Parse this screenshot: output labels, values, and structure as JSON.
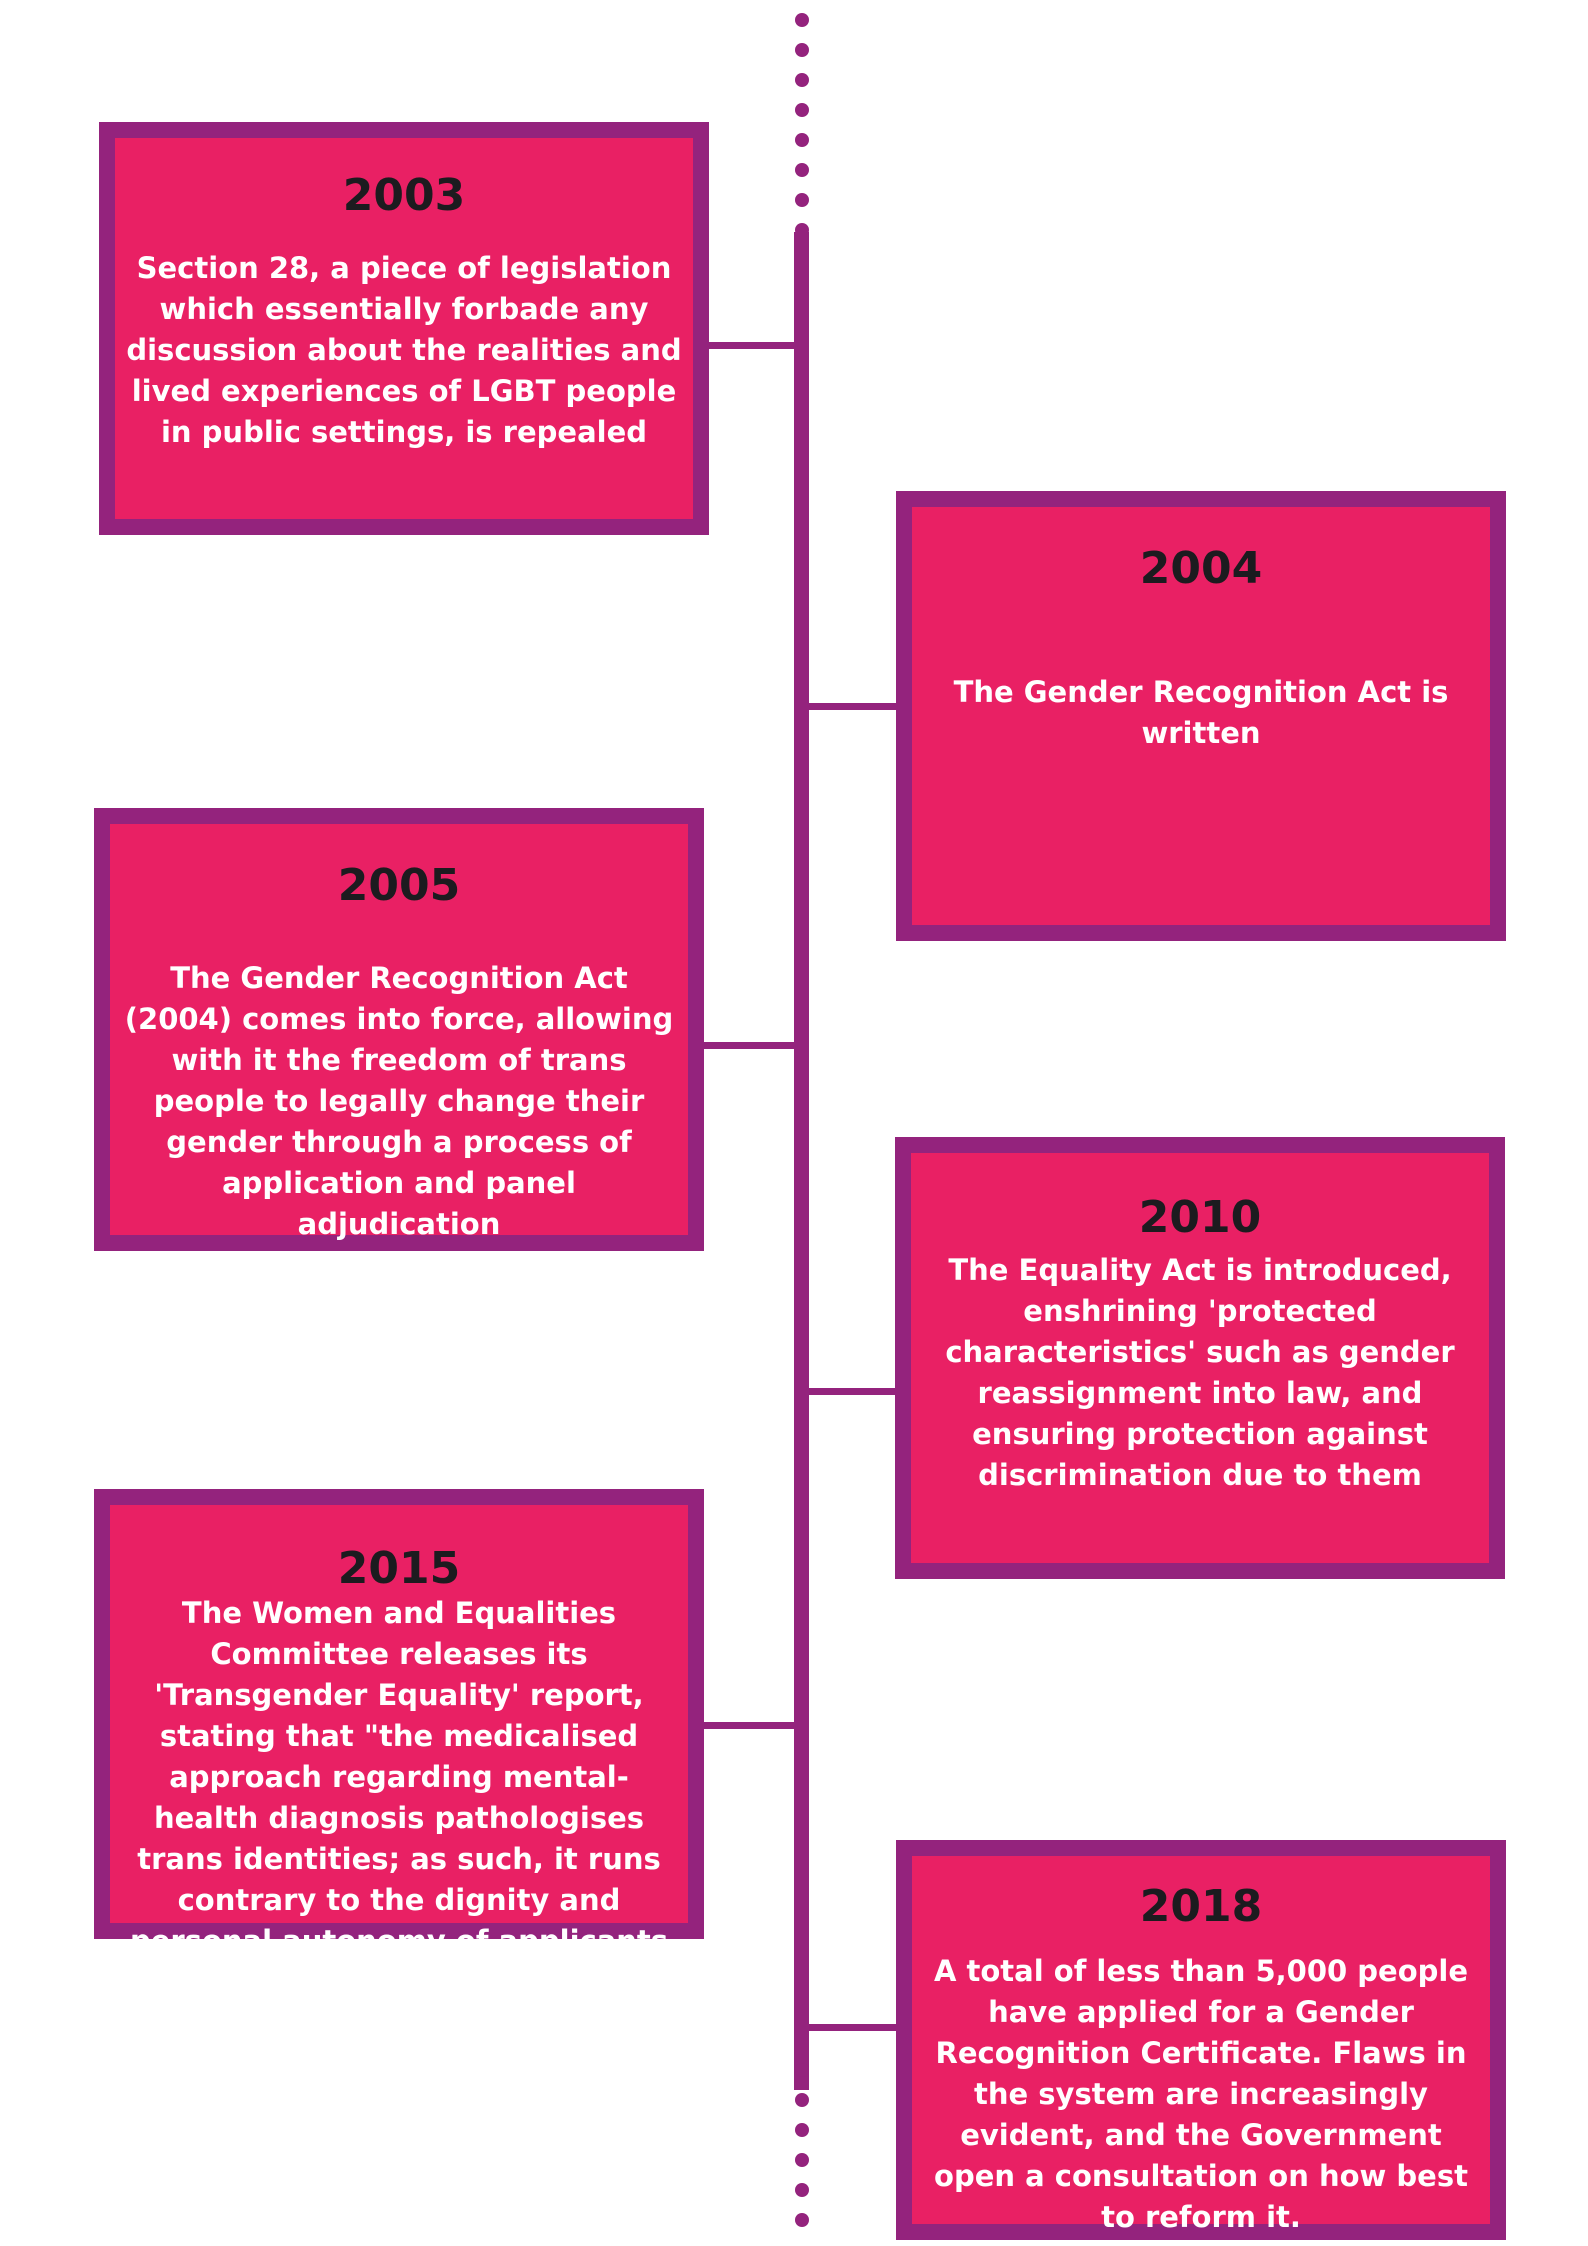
{
  "colors": {
    "box_fill": "#e92064",
    "box_border": "#94237d",
    "timeline": "#94237d",
    "year_text": "#1c1b1f",
    "body_text": "#ffffff",
    "background": "#ffffff"
  },
  "events": [
    {
      "year": "2003",
      "text": "Section 28, a piece of legislation which essentially forbade any discussion about the realities and lived experiences of LGBT people in public settings, is repealed"
    },
    {
      "year": "2004",
      "text": "The Gender Recognition Act is written"
    },
    {
      "year": "2005",
      "text": "The Gender Recognition Act (2004) comes into force, allowing with it the freedom of trans people to legally change their gender through a process of application and panel adjudication"
    },
    {
      "year": "2010",
      "text": "The Equality Act is introduced, enshrining 'protected characteristics' such as gender reassignment into law, and ensuring protection against discrimination due to them"
    },
    {
      "year": "2015",
      "text": "The Women and Equalities Committee releases its 'Transgender Equality' report, stating that \"the medicalised approach regarding mental-health diagnosis pathologises trans identities; as such, it runs contrary to the dignity and personal autonomy of applicants"
    },
    {
      "year": "2018",
      "text": "A total of less than 5,000 people have applied for a Gender Recognition Certificate. Flaws in the system are increasingly evident, and the Government open a consultation on how best to reform it."
    }
  ]
}
